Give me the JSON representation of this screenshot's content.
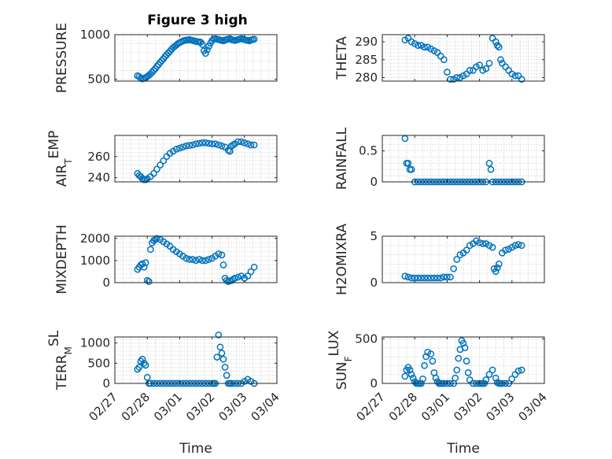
{
  "figure_title": "Figure 3 high",
  "chart_data": [
    {
      "type": "scatter",
      "id": "pressure",
      "ylabel": "PRESSURE",
      "ylabel_sub": null,
      "xlabel": "",
      "ylim": [
        480,
        1000
      ],
      "yticks": [
        500,
        1000
      ],
      "x": [
        0.7,
        0.75,
        0.8,
        0.85,
        0.9,
        0.95,
        1.0,
        1.05,
        1.1,
        1.15,
        1.2,
        1.25,
        1.3,
        1.35,
        1.4,
        1.45,
        1.5,
        1.55,
        1.6,
        1.65,
        1.7,
        1.75,
        1.8,
        1.85,
        1.9,
        1.95,
        2.0,
        2.05,
        2.1,
        2.15,
        2.2,
        2.25,
        2.3,
        2.35,
        2.4,
        2.45,
        2.5,
        2.55,
        2.6,
        2.65,
        2.7,
        2.75,
        2.8,
        2.85,
        2.9,
        2.95,
        3.0,
        3.05,
        3.1,
        3.15,
        3.2,
        3.25,
        3.3,
        3.35,
        3.4,
        3.45,
        3.5,
        3.55,
        3.6,
        3.65,
        3.7,
        3.75,
        3.8,
        3.85,
        3.9,
        3.95,
        4.0,
        4.05,
        4.1,
        4.15,
        4.2,
        4.25,
        4.3
      ],
      "y": [
        540,
        530,
        515,
        505,
        510,
        520,
        530,
        545,
        560,
        580,
        600,
        620,
        645,
        665,
        690,
        710,
        730,
        755,
        775,
        795,
        815,
        835,
        855,
        870,
        885,
        900,
        910,
        920,
        930,
        935,
        940,
        940,
        945,
        940,
        935,
        930,
        925,
        920,
        920,
        915,
        890,
        820,
        790,
        830,
        870,
        905,
        935,
        950,
        955,
        950,
        945,
        940,
        935,
        930,
        940,
        945,
        950,
        955,
        945,
        940,
        935,
        940,
        945,
        950,
        955,
        950,
        945,
        940,
        935,
        930,
        940,
        945,
        950
      ],
      "xlim": [
        0,
        5
      ]
    },
    {
      "type": "scatter",
      "id": "theta",
      "ylabel": "THETA",
      "ylabel_sub": null,
      "xlabel": "",
      "ylim": [
        279,
        292
      ],
      "yticks": [
        280,
        285,
        290
      ],
      "x": [
        0.7,
        0.8,
        0.9,
        1.0,
        1.1,
        1.2,
        1.3,
        1.4,
        1.5,
        1.6,
        1.7,
        1.8,
        1.9,
        2.0,
        2.1,
        2.2,
        2.3,
        2.4,
        2.5,
        2.6,
        2.7,
        2.8,
        2.9,
        3.0,
        3.1,
        3.2,
        3.3,
        3.4,
        3.5,
        3.55,
        3.6,
        3.65,
        3.7,
        3.8,
        3.9,
        4.0,
        4.1,
        4.2,
        4.3
      ],
      "y": [
        290.5,
        291,
        290,
        289.5,
        289,
        289,
        288.5,
        288.5,
        288,
        287.5,
        287,
        286,
        285,
        281.5,
        279.5,
        279.5,
        280,
        280,
        280.5,
        281,
        282,
        282,
        283,
        283.5,
        282,
        282.5,
        284,
        291,
        290,
        289,
        288.5,
        285,
        284,
        283,
        282,
        281,
        280.5,
        280.5,
        279.5
      ],
      "xlim": [
        0,
        5
      ]
    },
    {
      "type": "scatter",
      "id": "air-temp",
      "ylabel": "AIR",
      "ylabel_sub": "T",
      "ylabel_suffix": "EMP",
      "xlabel": "",
      "ylim": [
        236,
        280
      ],
      "yticks": [
        240,
        260
      ],
      "x": [
        0.7,
        0.75,
        0.8,
        0.85,
        0.9,
        0.95,
        1.0,
        1.1,
        1.2,
        1.3,
        1.4,
        1.5,
        1.6,
        1.7,
        1.8,
        1.9,
        2.0,
        2.1,
        2.2,
        2.3,
        2.4,
        2.5,
        2.6,
        2.7,
        2.8,
        2.9,
        3.0,
        3.1,
        3.2,
        3.3,
        3.4,
        3.5,
        3.55,
        3.6,
        3.65,
        3.7,
        3.8,
        3.9,
        4.0,
        4.1,
        4.2,
        4.3
      ],
      "y": [
        244,
        242,
        241,
        239,
        238,
        238,
        239,
        241,
        244,
        248,
        252,
        256,
        260,
        263,
        265,
        267,
        268,
        269,
        270,
        270.5,
        271,
        272,
        272.5,
        273,
        273,
        272.5,
        272,
        272,
        271,
        270,
        269,
        266,
        265,
        270,
        271,
        272,
        274,
        274,
        273,
        272,
        271,
        271
      ],
      "xlim": [
        0,
        5
      ]
    },
    {
      "type": "scatter",
      "id": "rainfall",
      "ylabel": "RAINFALL",
      "ylabel_sub": null,
      "xlabel": "",
      "ylim": [
        0,
        0.75
      ],
      "yticks": [
        0,
        0.5
      ],
      "x": [
        0.7,
        0.75,
        0.8,
        0.85,
        0.9,
        1.0,
        1.1,
        1.2,
        1.3,
        1.4,
        1.5,
        1.6,
        1.7,
        1.8,
        1.9,
        2.0,
        2.1,
        2.2,
        2.3,
        2.4,
        2.5,
        2.6,
        2.7,
        2.8,
        2.9,
        3.0,
        3.1,
        3.2,
        3.3,
        3.35,
        3.4,
        3.5,
        3.6,
        3.7,
        3.8,
        3.9,
        4.0,
        4.1,
        4.2,
        4.3
      ],
      "y": [
        0.7,
        0.3,
        0.3,
        0.2,
        0.2,
        0,
        0,
        0,
        0,
        0,
        0,
        0,
        0,
        0,
        0,
        0,
        0,
        0,
        0,
        0,
        0,
        0,
        0,
        0,
        0,
        0,
        0,
        0,
        0.3,
        0.2,
        0,
        0,
        0,
        0,
        0,
        0,
        0,
        0,
        0,
        0
      ],
      "xlim": [
        0,
        5
      ]
    },
    {
      "type": "scatter",
      "id": "mixdepth",
      "ylabel": "MIXDEPTH",
      "ylabel_sub": null,
      "xlabel": "",
      "ylim": [
        0,
        2100
      ],
      "yticks": [
        0,
        1000,
        2000
      ],
      "x": [
        0.7,
        0.75,
        0.8,
        0.85,
        0.9,
        0.95,
        1.0,
        1.05,
        1.1,
        1.15,
        1.2,
        1.25,
        1.3,
        1.4,
        1.5,
        1.6,
        1.7,
        1.8,
        1.9,
        2.0,
        2.1,
        2.2,
        2.3,
        2.4,
        2.5,
        2.6,
        2.7,
        2.8,
        2.9,
        3.0,
        3.1,
        3.2,
        3.3,
        3.35,
        3.4,
        3.45,
        3.5,
        3.55,
        3.6,
        3.65,
        3.7,
        3.8,
        3.9,
        4.0,
        4.1,
        4.2,
        4.3
      ],
      "y": [
        600,
        700,
        800,
        850,
        700,
        900,
        100,
        50,
        1500,
        1800,
        1900,
        1950,
        2000,
        1950,
        1850,
        1750,
        1650,
        1500,
        1400,
        1300,
        1200,
        1100,
        1050,
        1050,
        1000,
        1050,
        1000,
        1000,
        1050,
        1100,
        1200,
        1300,
        1250,
        800,
        200,
        100,
        50,
        80,
        100,
        150,
        200,
        250,
        300,
        200,
        300,
        500,
        700
      ],
      "xlim": [
        0,
        5
      ]
    },
    {
      "type": "scatter",
      "id": "h2omixra",
      "ylabel": "H2OMIXRA",
      "ylabel_sub": null,
      "xlabel": "",
      "ylim": [
        0,
        5
      ],
      "yticks": [
        0,
        5
      ],
      "x": [
        0.7,
        0.8,
        0.9,
        1.0,
        1.1,
        1.2,
        1.3,
        1.4,
        1.5,
        1.6,
        1.7,
        1.8,
        1.9,
        2.0,
        2.1,
        2.2,
        2.3,
        2.4,
        2.5,
        2.6,
        2.7,
        2.8,
        2.9,
        3.0,
        3.1,
        3.2,
        3.3,
        3.4,
        3.45,
        3.5,
        3.55,
        3.6,
        3.7,
        3.8,
        3.9,
        4.0,
        4.1,
        4.2,
        4.3
      ],
      "y": [
        0.7,
        0.6,
        0.5,
        0.5,
        0.5,
        0.5,
        0.5,
        0.5,
        0.5,
        0.5,
        0.5,
        0.5,
        0.6,
        0.6,
        0.6,
        1.5,
        2.5,
        3.0,
        3.2,
        3.5,
        4.0,
        4.2,
        4.5,
        4.3,
        4.2,
        4.2,
        4.0,
        3.8,
        1.5,
        1.2,
        1.6,
        2.0,
        3.2,
        3.5,
        3.6,
        3.8,
        4.0,
        4.1,
        4.0
      ],
      "xlim": [
        0,
        5
      ]
    },
    {
      "type": "scatter",
      "id": "terr-msl",
      "ylabel": "TERR",
      "ylabel_sub": "M",
      "ylabel_suffix": "SL",
      "xlabel": "Time",
      "ylim": [
        0,
        1150
      ],
      "yticks": [
        0,
        500,
        1000
      ],
      "x": [
        0.7,
        0.75,
        0.8,
        0.85,
        0.9,
        0.95,
        1.0,
        1.05,
        1.1,
        1.2,
        1.3,
        1.4,
        1.5,
        1.6,
        1.7,
        1.8,
        1.9,
        2.0,
        2.1,
        2.2,
        2.3,
        2.4,
        2.5,
        2.6,
        2.7,
        2.8,
        2.9,
        3.0,
        3.05,
        3.1,
        3.15,
        3.2,
        3.25,
        3.3,
        3.35,
        3.4,
        3.45,
        3.5,
        3.55,
        3.6,
        3.7,
        3.8,
        3.9,
        4.0,
        4.1,
        4.2,
        4.3
      ],
      "y": [
        350,
        400,
        550,
        600,
        500,
        450,
        150,
        0,
        0,
        0,
        0,
        0,
        0,
        0,
        0,
        0,
        0,
        0,
        0,
        0,
        0,
        0,
        0,
        0,
        0,
        0,
        0,
        0,
        0,
        0,
        650,
        1200,
        900,
        750,
        600,
        400,
        200,
        0,
        0,
        0,
        0,
        0,
        0,
        50,
        100,
        50,
        0
      ],
      "xlim": [
        0,
        5
      ],
      "xticks": [
        "02/27",
        "02/28",
        "03/01",
        "03/02",
        "03/03",
        "03/04"
      ]
    },
    {
      "type": "scatter",
      "id": "sun-flux",
      "ylabel": "SUN",
      "ylabel_sub": "F",
      "ylabel_suffix": "LUX",
      "xlabel": "Time",
      "ylim": [
        0,
        520
      ],
      "yticks": [
        0,
        500
      ],
      "x": [
        0.7,
        0.75,
        0.8,
        0.85,
        0.9,
        0.95,
        1.0,
        1.05,
        1.1,
        1.15,
        1.2,
        1.25,
        1.3,
        1.35,
        1.4,
        1.5,
        1.55,
        1.6,
        1.65,
        1.7,
        1.75,
        1.8,
        1.85,
        1.9,
        2.0,
        2.1,
        2.2,
        2.25,
        2.3,
        2.35,
        2.4,
        2.45,
        2.5,
        2.55,
        2.6,
        2.65,
        2.7,
        2.8,
        2.9,
        3.0,
        3.05,
        3.1,
        3.15,
        3.2,
        3.3,
        3.4,
        3.5,
        3.55,
        3.6,
        3.65,
        3.7,
        3.8,
        3.9,
        4.0,
        4.1,
        4.2,
        4.3
      ],
      "y": [
        80,
        150,
        180,
        150,
        100,
        60,
        20,
        0,
        0,
        0,
        0,
        50,
        200,
        300,
        350,
        330,
        250,
        120,
        60,
        20,
        0,
        0,
        0,
        0,
        0,
        0,
        0,
        60,
        150,
        280,
        380,
        480,
        450,
        400,
        250,
        120,
        40,
        0,
        0,
        0,
        0,
        0,
        0,
        40,
        100,
        150,
        60,
        10,
        0,
        0,
        0,
        0,
        0,
        50,
        100,
        140,
        150
      ],
      "xlim": [
        0,
        5
      ],
      "xticks": [
        "02/27",
        "02/28",
        "03/01",
        "03/02",
        "03/03",
        "03/04"
      ]
    }
  ]
}
